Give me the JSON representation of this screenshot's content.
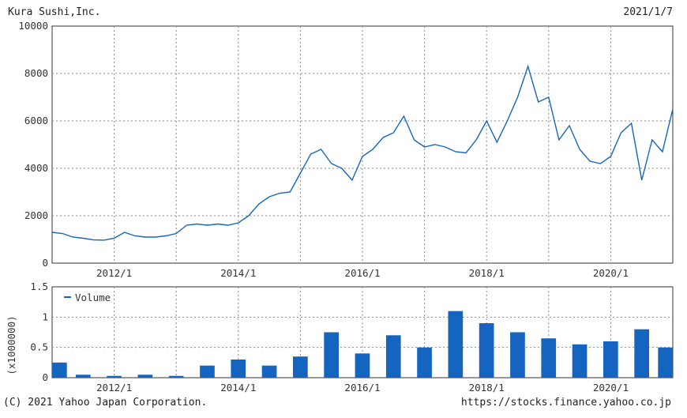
{
  "header": {
    "company": "Kura Sushi,Inc.",
    "date": "2021/1/7"
  },
  "footer": {
    "copyright": "(C) 2021 Yahoo Japan Corporation.",
    "source": "https://stocks.finance.yahoo.co.jp"
  },
  "colors": {
    "series": "#1565c0",
    "grid": "#888888",
    "axis": "#333333"
  },
  "chart_data": [
    {
      "type": "line",
      "title": "",
      "ylim": [
        0,
        10000
      ],
      "xlim": [
        "2011-01",
        "2021-01"
      ],
      "y_ticks": [
        0,
        2000,
        4000,
        6000,
        8000,
        10000
      ],
      "x_ticks": [
        {
          "label": "2012/1",
          "date": "2012-01"
        },
        {
          "label": "2014/1",
          "date": "2014-01"
        },
        {
          "label": "2016/1",
          "date": "2016-01"
        },
        {
          "label": "2018/1",
          "date": "2018-01"
        },
        {
          "label": "2020/1",
          "date": "2020-01"
        }
      ],
      "grid": true,
      "series": [
        {
          "x": [
            "2011-01",
            "2011-03",
            "2011-05",
            "2011-07",
            "2011-09",
            "2011-11",
            "2012-01",
            "2012-03",
            "2012-05",
            "2012-07",
            "2012-09",
            "2012-11",
            "2013-01",
            "2013-03",
            "2013-05",
            "2013-07",
            "2013-09",
            "2013-11",
            "2014-01",
            "2014-03",
            "2014-05",
            "2014-07",
            "2014-09",
            "2014-11",
            "2015-01",
            "2015-03",
            "2015-05",
            "2015-07",
            "2015-09",
            "2015-11",
            "2016-01",
            "2016-03",
            "2016-05",
            "2016-07",
            "2016-09",
            "2016-11",
            "2017-01",
            "2017-03",
            "2017-05",
            "2017-07",
            "2017-09",
            "2017-11",
            "2018-01",
            "2018-03",
            "2018-05",
            "2018-07",
            "2018-09",
            "2018-11",
            "2019-01",
            "2019-03",
            "2019-05",
            "2019-07",
            "2019-09",
            "2019-11",
            "2020-01",
            "2020-03",
            "2020-05",
            "2020-07",
            "2020-09",
            "2020-11",
            "2021-01"
          ],
          "y": [
            1300,
            1250,
            1100,
            1050,
            980,
            970,
            1050,
            1300,
            1150,
            1100,
            1100,
            1150,
            1250,
            1600,
            1650,
            1600,
            1650,
            1600,
            1700,
            2000,
            2500,
            2800,
            2950,
            3000,
            3800,
            4600,
            4800,
            4200,
            4000,
            3500,
            4500,
            4800,
            5300,
            5500,
            6200,
            5200,
            4900,
            5000,
            4900,
            4700,
            4650,
            5200,
            6000,
            5100,
            6000,
            7000,
            8300,
            6800,
            7000,
            5200,
            5800,
            4800,
            4300,
            4200,
            4500,
            5500,
            5900,
            3500,
            5200,
            4700,
            6500
          ]
        }
      ]
    },
    {
      "type": "bar",
      "title": "",
      "ylabel": "(x1000000)",
      "ylim": [
        0,
        1.5
      ],
      "y_ticks": [
        0,
        0.5,
        1,
        1.5
      ],
      "x_ticks": [
        "2012/1",
        "2014/1",
        "2016/1",
        "2018/1",
        "2020/1"
      ],
      "legend": "top-left",
      "grid": true,
      "series": [
        {
          "name": "Volume",
          "x": [
            "2011-01",
            "2011-07",
            "2012-01",
            "2012-07",
            "2013-01",
            "2013-07",
            "2014-01",
            "2014-07",
            "2015-01",
            "2015-07",
            "2016-01",
            "2016-07",
            "2017-01",
            "2017-07",
            "2018-01",
            "2018-07",
            "2019-01",
            "2019-07",
            "2020-01",
            "2020-07",
            "2021-01"
          ],
          "y": [
            0.25,
            0.05,
            0.03,
            0.05,
            0.03,
            0.2,
            0.3,
            0.2,
            0.35,
            0.75,
            0.4,
            0.7,
            0.5,
            1.1,
            0.9,
            0.75,
            0.65,
            0.55,
            0.6,
            0.8,
            0.5
          ]
        }
      ]
    }
  ]
}
